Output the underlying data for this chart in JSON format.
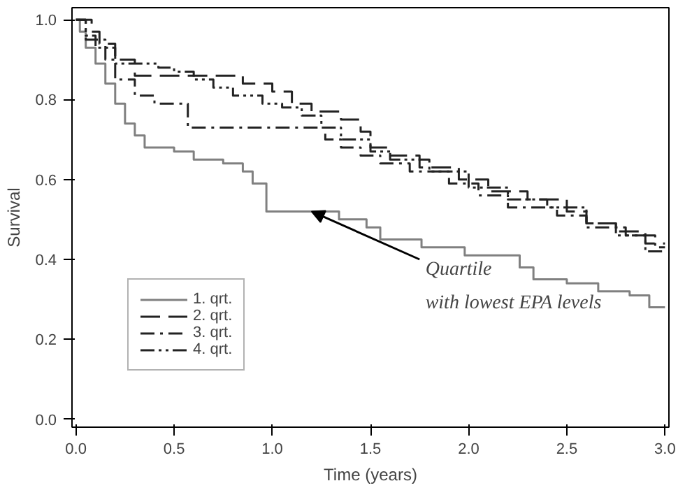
{
  "chart_data": {
    "type": "step",
    "xlabel": "Time (years)",
    "ylabel": "Survival",
    "xlim": [
      -0.02,
      3.02
    ],
    "ylim": [
      -0.02,
      1.03
    ],
    "xticks": [
      {
        "value": 0,
        "label": "0.0"
      },
      {
        "value": 0.5,
        "label": "0.5"
      },
      {
        "value": 1,
        "label": "1.0"
      },
      {
        "value": 1.5,
        "label": "1.5"
      },
      {
        "value": 2,
        "label": "2.0"
      },
      {
        "value": 2.5,
        "label": "2.5"
      },
      {
        "value": 3,
        "label": "3.0"
      }
    ],
    "yticks": [
      {
        "value": 0,
        "label": "0.0"
      },
      {
        "value": 0.2,
        "label": "0.2"
      },
      {
        "value": 0.4,
        "label": "0.4"
      },
      {
        "value": 0.6,
        "label": "0.6"
      },
      {
        "value": 0.8,
        "label": "0.8"
      },
      {
        "value": 1,
        "label": "1.0"
      }
    ],
    "grid": false,
    "legend": "bottom left",
    "series": [
      {
        "name": "1. qrt.",
        "color": "#808080",
        "line_style": "solid",
        "x": [
          0,
          0.02,
          0.05,
          0.1,
          0.15,
          0.2,
          0.25,
          0.3,
          0.35,
          0.5,
          0.6,
          0.75,
          0.85,
          0.9,
          0.97,
          1.34,
          1.48,
          1.55,
          1.76,
          1.98,
          2.26,
          2.33,
          2.5,
          2.66,
          2.82,
          2.92,
          3.0
        ],
        "values": [
          1.0,
          0.97,
          0.93,
          0.89,
          0.84,
          0.79,
          0.74,
          0.71,
          0.68,
          0.67,
          0.65,
          0.64,
          0.62,
          0.59,
          0.52,
          0.5,
          0.48,
          0.45,
          0.43,
          0.41,
          0.38,
          0.35,
          0.34,
          0.32,
          0.31,
          0.28,
          0.28
        ]
      },
      {
        "name": "2. qrt.",
        "color": "#222222",
        "line_style": "dashed",
        "x": [
          0,
          0.08,
          0.12,
          0.2,
          0.3,
          0.85,
          1.0,
          1.1,
          1.2,
          1.35,
          1.45,
          1.5,
          1.6,
          1.75,
          1.95,
          2.1,
          2.3,
          2.5,
          2.6,
          2.75,
          2.9,
          3.0
        ],
        "values": [
          1.0,
          0.97,
          0.94,
          0.9,
          0.86,
          0.84,
          0.82,
          0.79,
          0.77,
          0.75,
          0.72,
          0.68,
          0.66,
          0.63,
          0.6,
          0.57,
          0.55,
          0.52,
          0.49,
          0.47,
          0.44,
          0.44
        ]
      },
      {
        "name": "3. qrt.",
        "color": "#222222",
        "line_style": "dashdot",
        "x": [
          0,
          0.05,
          0.15,
          0.2,
          0.3,
          0.4,
          0.57,
          1.27,
          1.35,
          1.45,
          1.55,
          1.7,
          1.9,
          2.05,
          2.2,
          2.45,
          2.6,
          2.8,
          2.95,
          3.0
        ],
        "values": [
          1.0,
          0.95,
          0.9,
          0.85,
          0.81,
          0.79,
          0.73,
          0.7,
          0.68,
          0.66,
          0.64,
          0.62,
          0.59,
          0.56,
          0.53,
          0.51,
          0.48,
          0.46,
          0.43,
          0.43
        ]
      },
      {
        "name": "4. qrt.",
        "color": "#222222",
        "line_style": "dashdotdot",
        "x": [
          0,
          0.05,
          0.1,
          0.2,
          0.42,
          0.5,
          0.6,
          0.7,
          0.8,
          0.95,
          1.05,
          1.15,
          1.25,
          1.35,
          1.5,
          1.6,
          1.8,
          2.0,
          2.2,
          2.4,
          2.6,
          2.75,
          2.9,
          3.0
        ],
        "values": [
          1.0,
          0.96,
          0.93,
          0.89,
          0.88,
          0.87,
          0.85,
          0.83,
          0.81,
          0.79,
          0.78,
          0.76,
          0.73,
          0.7,
          0.67,
          0.65,
          0.62,
          0.58,
          0.55,
          0.53,
          0.49,
          0.46,
          0.42,
          0.42
        ]
      }
    ],
    "annotations": [
      {
        "text": "Quartile\nwith lowest EPA levels",
        "x": 1.2,
        "y": 0.52
      }
    ]
  }
}
